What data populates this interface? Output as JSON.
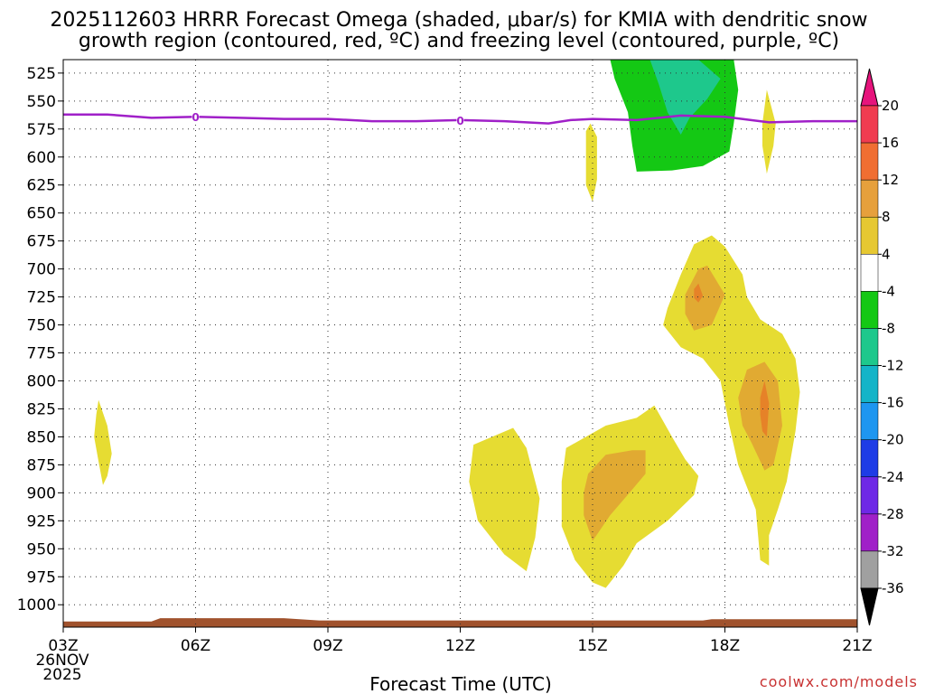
{
  "title_line1": "2025112603 HRRR Forecast Omega (shaded, μbar/s) for KMIA with dendritic snow",
  "title_line2": "growth region (contoured, red, ºC) and freezing level (contoured, purple, ºC)",
  "credit": "coolwx.com/models",
  "colors": {
    "yellow": "#e6dc32",
    "orange_light": "#e1aa32",
    "orange": "#e68228",
    "red": "#f05028",
    "green": "#14c814",
    "teal": "#1ec88c",
    "cyan": "#14b4c8",
    "freezing_line": "#a020c8",
    "ground": "#a0522d",
    "credit_color": "#c83232"
  },
  "chart_data": {
    "type": "heatmap",
    "title": "2025112603 HRRR Forecast Omega (shaded, μbar/s) for KMIA with dendritic snow growth region (contoured, red, ºC) and freezing level (contoured, purple, ºC)",
    "xlabel": "Forecast Time (UTC)",
    "ylabel": "",
    "x_range_hours": [
      0,
      18
    ],
    "y_range_hpa": [
      513,
      1020
    ],
    "x_ticks": [
      {
        "hour": 0,
        "label": "03Z",
        "extra": [
          "26NOV",
          "2025"
        ]
      },
      {
        "hour": 3,
        "label": "06Z"
      },
      {
        "hour": 6,
        "label": "09Z"
      },
      {
        "hour": 9,
        "label": "12Z"
      },
      {
        "hour": 12,
        "label": "15Z"
      },
      {
        "hour": 15,
        "label": "18Z"
      },
      {
        "hour": 18,
        "label": "21Z"
      }
    ],
    "y_ticks": [
      525,
      550,
      575,
      600,
      625,
      650,
      675,
      700,
      725,
      750,
      775,
      800,
      825,
      850,
      875,
      900,
      925,
      950,
      975,
      1000
    ],
    "colorbar": {
      "labels": [
        "20",
        "16",
        "12",
        "8",
        "4",
        "-4",
        "-8",
        "-12",
        "-16",
        "-20",
        "-24",
        "-28",
        "-32",
        "-36"
      ],
      "colors": [
        "#f03c50",
        "#f06e32",
        "#e6a03c",
        "#e6c832",
        "#ffffff",
        "#14c814",
        "#1ec88c",
        "#14b4c8",
        "#1e96f0",
        "#1e3ce6",
        "#6e28e6",
        "#a020c8",
        "#a0a0a0"
      ],
      "top_arrow_color": "#e6147c",
      "bottom_arrow_color": "#000000"
    },
    "freezing_level": {
      "label": "0",
      "label_hours": [
        3,
        9
      ],
      "points": [
        [
          0,
          562
        ],
        [
          1,
          562
        ],
        [
          2,
          565
        ],
        [
          3,
          564
        ],
        [
          4,
          565
        ],
        [
          5,
          566
        ],
        [
          6,
          566
        ],
        [
          7,
          568
        ],
        [
          8,
          568
        ],
        [
          9,
          567
        ],
        [
          10,
          568
        ],
        [
          11,
          570
        ],
        [
          11.5,
          567
        ],
        [
          12,
          566
        ],
        [
          13,
          567
        ],
        [
          14,
          563
        ],
        [
          15,
          564
        ],
        [
          16,
          569
        ],
        [
          17,
          568
        ],
        [
          18,
          568
        ]
      ]
    },
    "omega_regions": [
      {
        "level": "yellow",
        "points": [
          [
            0.8,
            817
          ],
          [
            1.0,
            840
          ],
          [
            1.1,
            865
          ],
          [
            1.0,
            885
          ],
          [
            0.9,
            893
          ],
          [
            0.8,
            872
          ],
          [
            0.7,
            850
          ],
          [
            0.75,
            830
          ]
        ]
      },
      {
        "level": "yellow",
        "points": [
          [
            9.3,
            857
          ],
          [
            10.2,
            842
          ],
          [
            10.5,
            860
          ],
          [
            10.8,
            905
          ],
          [
            10.7,
            940
          ],
          [
            10.5,
            970
          ],
          [
            10.0,
            955
          ],
          [
            9.4,
            925
          ],
          [
            9.2,
            890
          ]
        ]
      },
      {
        "level": "yellow",
        "points": [
          [
            11.4,
            860
          ],
          [
            12.3,
            840
          ],
          [
            13.0,
            833
          ],
          [
            13.4,
            822
          ],
          [
            13.8,
            850
          ],
          [
            14.1,
            870
          ],
          [
            14.4,
            885
          ],
          [
            14.3,
            902
          ],
          [
            13.7,
            925
          ],
          [
            13.0,
            945
          ],
          [
            12.7,
            965
          ],
          [
            12.3,
            985
          ],
          [
            12.0,
            980
          ],
          [
            11.6,
            960
          ],
          [
            11.3,
            930
          ],
          [
            11.3,
            890
          ]
        ]
      },
      {
        "level": "orange_light",
        "points": [
          [
            11.9,
            883
          ],
          [
            12.3,
            866
          ],
          [
            12.9,
            862
          ],
          [
            13.2,
            862
          ],
          [
            13.2,
            883
          ],
          [
            12.9,
            897
          ],
          [
            12.4,
            920
          ],
          [
            12.0,
            943
          ],
          [
            11.8,
            920
          ],
          [
            11.8,
            900
          ]
        ]
      },
      {
        "level": "yellow",
        "points": [
          [
            13.7,
            735
          ],
          [
            14.0,
            705
          ],
          [
            14.3,
            678
          ],
          [
            14.7,
            670
          ],
          [
            15.0,
            680
          ],
          [
            15.4,
            705
          ],
          [
            15.5,
            725
          ],
          [
            15.8,
            745
          ],
          [
            16.3,
            758
          ],
          [
            16.6,
            780
          ],
          [
            16.7,
            810
          ],
          [
            16.6,
            845
          ],
          [
            16.4,
            890
          ],
          [
            16.2,
            915
          ],
          [
            16.0,
            938
          ],
          [
            16.0,
            965
          ],
          [
            15.8,
            960
          ],
          [
            15.7,
            915
          ],
          [
            15.3,
            875
          ],
          [
            15.1,
            840
          ],
          [
            14.9,
            800
          ],
          [
            14.5,
            780
          ],
          [
            14.0,
            770
          ],
          [
            13.6,
            750
          ]
        ]
      },
      {
        "level": "orange_light",
        "points": [
          [
            14.1,
            723
          ],
          [
            14.4,
            700
          ],
          [
            14.6,
            697
          ],
          [
            15.0,
            723
          ],
          [
            14.7,
            750
          ],
          [
            14.3,
            755
          ],
          [
            14.1,
            740
          ]
        ]
      },
      {
        "level": "orange",
        "points": [
          [
            14.3,
            718
          ],
          [
            14.4,
            713
          ],
          [
            14.5,
            724
          ],
          [
            14.4,
            730
          ],
          [
            14.3,
            726
          ]
        ]
      },
      {
        "level": "orange_light",
        "points": [
          [
            15.3,
            815
          ],
          [
            15.5,
            790
          ],
          [
            15.9,
            783
          ],
          [
            16.2,
            800
          ],
          [
            16.3,
            840
          ],
          [
            16.1,
            875
          ],
          [
            15.9,
            880
          ],
          [
            15.6,
            855
          ],
          [
            15.4,
            840
          ]
        ]
      },
      {
        "level": "orange",
        "points": [
          [
            15.8,
            815
          ],
          [
            15.9,
            800
          ],
          [
            16.0,
            820
          ],
          [
            15.95,
            850
          ],
          [
            15.85,
            845
          ],
          [
            15.8,
            830
          ]
        ]
      },
      {
        "level": "yellow",
        "points": [
          [
            11.85,
            577
          ],
          [
            11.95,
            570
          ],
          [
            12.1,
            582
          ],
          [
            12.1,
            620
          ],
          [
            12.0,
            640
          ],
          [
            11.85,
            625
          ]
        ]
      },
      {
        "level": "yellow",
        "points": [
          [
            15.85,
            570
          ],
          [
            15.95,
            540
          ],
          [
            16.15,
            570
          ],
          [
            16.1,
            590
          ],
          [
            15.95,
            615
          ],
          [
            15.85,
            590
          ]
        ]
      },
      {
        "level": "green",
        "points": [
          [
            12.4,
            513
          ],
          [
            15.2,
            513
          ],
          [
            15.3,
            540
          ],
          [
            15.2,
            570
          ],
          [
            15.1,
            595
          ],
          [
            14.5,
            608
          ],
          [
            13.8,
            612
          ],
          [
            13.0,
            613
          ],
          [
            12.9,
            590
          ],
          [
            12.8,
            560
          ],
          [
            12.5,
            530
          ]
        ]
      },
      {
        "level": "teal",
        "points": [
          [
            13.3,
            513
          ],
          [
            14.4,
            513
          ],
          [
            14.9,
            530
          ],
          [
            14.6,
            548
          ],
          [
            14.2,
            565
          ],
          [
            14.0,
            580
          ],
          [
            13.7,
            560
          ],
          [
            13.5,
            535
          ]
        ]
      }
    ],
    "ground_profile": [
      [
        0,
        1015
      ],
      [
        2,
        1015
      ],
      [
        2.2,
        1012
      ],
      [
        5,
        1012
      ],
      [
        5.8,
        1014
      ],
      [
        14.5,
        1014
      ],
      [
        14.7,
        1013
      ],
      [
        18,
        1013
      ]
    ]
  }
}
